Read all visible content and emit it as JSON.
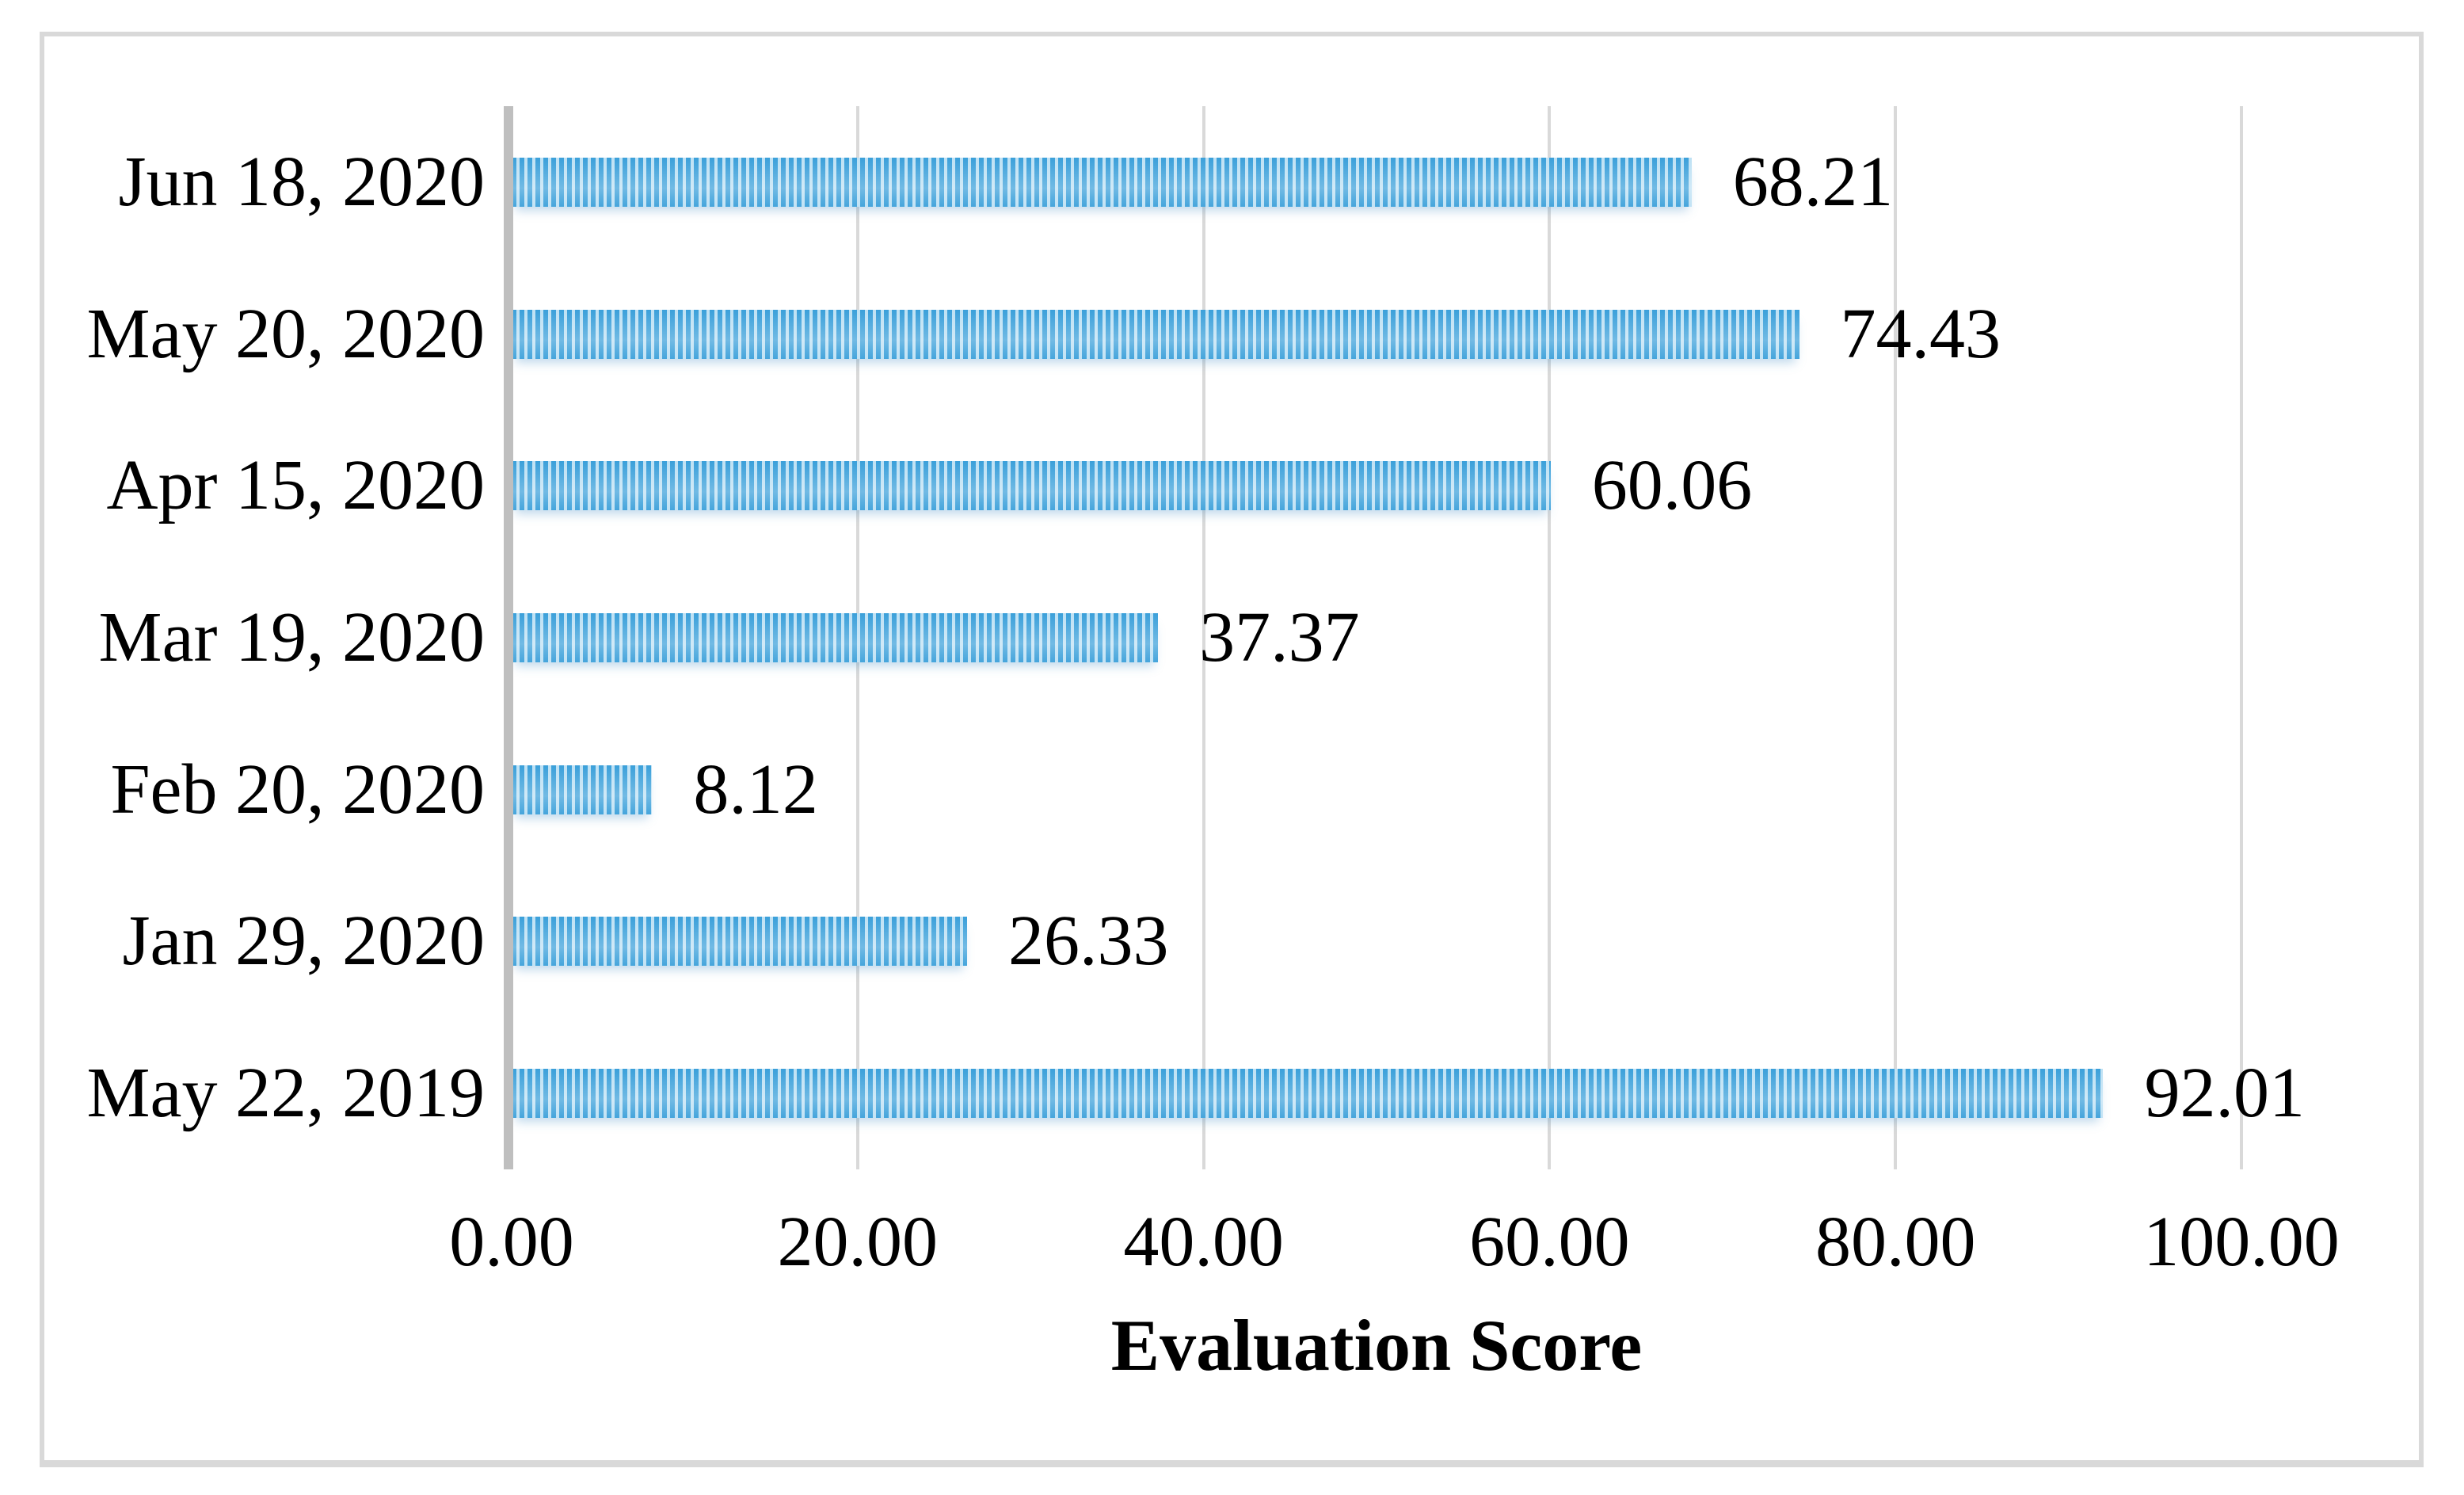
{
  "chart_data": {
    "type": "bar",
    "orientation": "horizontal",
    "title": "",
    "xlabel": "Evaluation Score",
    "ylabel": "",
    "xlim": [
      0,
      100
    ],
    "grid": "vertical",
    "legend": "none",
    "categories": [
      "Jun 18, 2020",
      "May 20, 2020",
      "Apr 15, 2020",
      "Mar 19, 2020",
      "Feb 20, 2020",
      "Jan 29, 2020",
      "May 22, 2019"
    ],
    "values": [
      68.21,
      74.43,
      60.06,
      37.37,
      8.12,
      26.33,
      92.01
    ],
    "value_labels": [
      "68.21",
      "74.43",
      "60.06",
      "37.37",
      "8.12",
      "26.33",
      "92.01"
    ],
    "x_ticks": [
      {
        "value": 0,
        "label": "0.00"
      },
      {
        "value": 20,
        "label": "20.00"
      },
      {
        "value": 40,
        "label": "40.00"
      },
      {
        "value": 60,
        "label": "60.00"
      },
      {
        "value": 80,
        "label": "80.00"
      },
      {
        "value": 100,
        "label": "100.00"
      }
    ],
    "bar_pattern": "vertical-stripes",
    "colors": {
      "bar_stripe_dark": "#3ba0da",
      "bar_stripe_light": "#bee1f4",
      "gridline": "#d9d9d9",
      "axis_line": "#bfbfbf",
      "figure_border": "#d9d9d9",
      "text": "#000000",
      "background": "#ffffff"
    }
  }
}
